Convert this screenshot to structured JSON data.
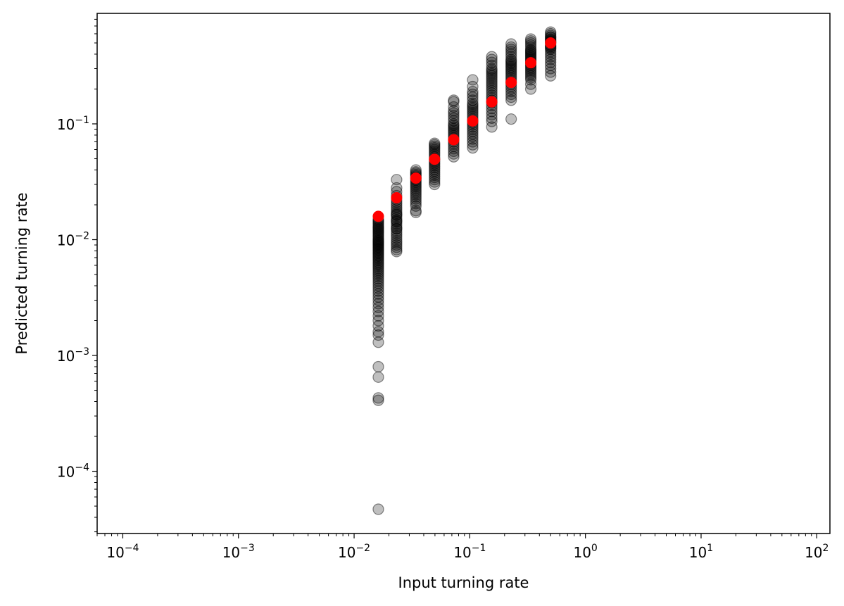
{
  "chart_data": {
    "type": "scatter",
    "title": "",
    "xlabel": "Input turning rate",
    "ylabel": "Predicted turning rate",
    "xscale": "log",
    "yscale": "log",
    "xlim": [
      6e-05,
      130
    ],
    "ylim": [
      2.9e-05,
      0.9
    ],
    "x_ticks": [
      {
        "base": "10",
        "exp": "−4",
        "value": 0.0001
      },
      {
        "base": "10",
        "exp": "−3",
        "value": 0.001
      },
      {
        "base": "10",
        "exp": "−2",
        "value": 0.01
      },
      {
        "base": "10",
        "exp": "−1",
        "value": 0.1
      },
      {
        "base": "10",
        "exp": "0",
        "value": 1
      },
      {
        "base": "10",
        "exp": "1",
        "value": 10
      },
      {
        "base": "10",
        "exp": "2",
        "value": 100
      }
    ],
    "y_ticks": [
      {
        "base": "10",
        "exp": "−4",
        "value": 0.0001
      },
      {
        "base": "10",
        "exp": "−3",
        "value": 0.001
      },
      {
        "base": "10",
        "exp": "−2",
        "value": 0.01
      },
      {
        "base": "10",
        "exp": "−1",
        "value": 0.1
      }
    ],
    "grid": false,
    "legend": "none",
    "colors": {
      "predicted": "#000000",
      "input": "#ff0000"
    },
    "series": [
      {
        "color": "#000000",
        "opacity": 0.25,
        "x": [
          0.0162,
          0.0162,
          0.0162,
          0.0162,
          0.0162,
          0.0162,
          0.0162,
          0.0162,
          0.0162,
          0.0162,
          0.0162,
          0.0162,
          0.0162,
          0.0162,
          0.0162,
          0.0162,
          0.0162,
          0.0162,
          0.0162,
          0.0162,
          0.0162,
          0.0162,
          0.0162,
          0.0162,
          0.0162,
          0.0162,
          0.0162,
          0.0162,
          0.0162,
          0.0162,
          0.0162,
          0.0162,
          0.0162,
          0.0162,
          0.0162,
          0.0162,
          0.0162,
          0.0162,
          0.0162,
          0.0162,
          0.0162,
          0.0162,
          0.0162,
          0.0162,
          0.0162,
          0.0162,
          0.0162,
          0.0162,
          0.0162,
          0.0162,
          0.0162,
          0.0162,
          0.0162,
          0.0162,
          0.0162,
          0.0162,
          0.0162,
          0.0162,
          0.0162,
          0.0162,
          0.0162,
          0.0162,
          0.0162,
          0.0162,
          0.0162,
          0.0233,
          0.0233,
          0.0233,
          0.0233,
          0.0233,
          0.0233,
          0.0233,
          0.0233,
          0.0233,
          0.0233,
          0.0233,
          0.0233,
          0.0233,
          0.0233,
          0.0233,
          0.0233,
          0.0233,
          0.0233,
          0.0233,
          0.0233,
          0.0233,
          0.0233,
          0.0233,
          0.0233,
          0.0233,
          0.0233,
          0.0233,
          0.0233,
          0.0233,
          0.0233,
          0.0233,
          0.0342,
          0.0342,
          0.0342,
          0.0342,
          0.0342,
          0.0342,
          0.0342,
          0.0342,
          0.0342,
          0.0342,
          0.0342,
          0.0342,
          0.0342,
          0.0342,
          0.0342,
          0.0342,
          0.0342,
          0.0342,
          0.0342,
          0.0342,
          0.0342,
          0.0342,
          0.0342,
          0.0496,
          0.0496,
          0.0496,
          0.0496,
          0.0496,
          0.0496,
          0.0496,
          0.0496,
          0.0496,
          0.0496,
          0.0496,
          0.0496,
          0.0496,
          0.0496,
          0.0496,
          0.0496,
          0.0496,
          0.0496,
          0.0496,
          0.0496,
          0.0496,
          0.0496,
          0.0496,
          0.0726,
          0.0726,
          0.0726,
          0.0726,
          0.0726,
          0.0726,
          0.0726,
          0.0726,
          0.0726,
          0.0726,
          0.0726,
          0.0726,
          0.0726,
          0.0726,
          0.0726,
          0.0726,
          0.0726,
          0.0726,
          0.0726,
          0.0726,
          0.0726,
          0.0726,
          0.0726,
          0.0726,
          0.0726,
          0.106,
          0.106,
          0.106,
          0.106,
          0.106,
          0.106,
          0.106,
          0.106,
          0.106,
          0.106,
          0.106,
          0.106,
          0.106,
          0.106,
          0.106,
          0.106,
          0.106,
          0.106,
          0.106,
          0.106,
          0.106,
          0.106,
          0.106,
          0.106,
          0.106,
          0.106,
          0.106,
          0.155,
          0.155,
          0.155,
          0.155,
          0.155,
          0.155,
          0.155,
          0.155,
          0.155,
          0.155,
          0.155,
          0.155,
          0.155,
          0.155,
          0.155,
          0.155,
          0.155,
          0.155,
          0.155,
          0.155,
          0.155,
          0.155,
          0.155,
          0.155,
          0.155,
          0.155,
          0.155,
          0.155,
          0.228,
          0.228,
          0.228,
          0.228,
          0.228,
          0.228,
          0.228,
          0.228,
          0.228,
          0.228,
          0.228,
          0.228,
          0.228,
          0.228,
          0.228,
          0.228,
          0.228,
          0.228,
          0.228,
          0.228,
          0.228,
          0.228,
          0.228,
          0.228,
          0.228,
          0.228,
          0.228,
          0.228,
          0.337,
          0.337,
          0.337,
          0.337,
          0.337,
          0.337,
          0.337,
          0.337,
          0.337,
          0.337,
          0.337,
          0.337,
          0.337,
          0.337,
          0.337,
          0.337,
          0.337,
          0.337,
          0.337,
          0.337,
          0.337,
          0.337,
          0.337,
          0.337,
          0.337,
          0.337,
          0.337,
          0.337,
          0.5,
          0.5,
          0.5,
          0.5,
          0.5,
          0.5,
          0.5,
          0.5,
          0.5,
          0.5,
          0.5,
          0.5,
          0.5,
          0.5,
          0.5,
          0.5,
          0.5,
          0.5,
          0.5,
          0.5,
          0.5,
          0.5,
          0.5,
          0.5
        ],
        "y": [
          4.7e-05,
          0.00041,
          0.00043,
          0.00065,
          0.0008,
          0.0013,
          0.0015,
          0.0016,
          0.0018,
          0.002,
          0.0022,
          0.0024,
          0.0026,
          0.0028,
          0.003,
          0.0032,
          0.0034,
          0.0036,
          0.0038,
          0.004,
          0.0042,
          0.0044,
          0.0046,
          0.0048,
          0.005,
          0.0052,
          0.0054,
          0.0056,
          0.0058,
          0.006,
          0.0062,
          0.0064,
          0.0066,
          0.0068,
          0.007,
          0.0072,
          0.0074,
          0.0076,
          0.0078,
          0.008,
          0.0082,
          0.0084,
          0.0086,
          0.0088,
          0.009,
          0.0092,
          0.0094,
          0.0096,
          0.0098,
          0.01,
          0.0103,
          0.0106,
          0.0109,
          0.0112,
          0.0115,
          0.0118,
          0.0121,
          0.0124,
          0.0127,
          0.013,
          0.0134,
          0.0138,
          0.0142,
          0.0146,
          0.015,
          0.0079,
          0.0082,
          0.0086,
          0.009,
          0.0094,
          0.0098,
          0.0103,
          0.0108,
          0.0113,
          0.0118,
          0.0124,
          0.013,
          0.0136,
          0.0142,
          0.0148,
          0.0155,
          0.0162,
          0.0169,
          0.0176,
          0.0184,
          0.0192,
          0.0201,
          0.021,
          0.022,
          0.024,
          0.026,
          0.028,
          0.033,
          0.0165,
          0.0125,
          0.0145,
          0.0172,
          0.0178,
          0.0195,
          0.0205,
          0.0215,
          0.0225,
          0.0235,
          0.0245,
          0.0255,
          0.0265,
          0.0275,
          0.0285,
          0.0295,
          0.0305,
          0.0315,
          0.0325,
          0.0335,
          0.0345,
          0.0355,
          0.0365,
          0.0375,
          0.0385,
          0.04,
          0.03,
          0.0315,
          0.033,
          0.0345,
          0.036,
          0.0375,
          0.039,
          0.0405,
          0.042,
          0.0435,
          0.045,
          0.0465,
          0.048,
          0.05,
          0.052,
          0.054,
          0.056,
          0.058,
          0.06,
          0.062,
          0.064,
          0.066,
          0.068,
          0.052,
          0.055,
          0.058,
          0.061,
          0.064,
          0.067,
          0.07,
          0.073,
          0.076,
          0.079,
          0.082,
          0.085,
          0.088,
          0.091,
          0.094,
          0.097,
          0.1,
          0.106,
          0.112,
          0.118,
          0.124,
          0.13,
          0.14,
          0.16,
          0.155,
          0.062,
          0.066,
          0.07,
          0.074,
          0.078,
          0.082,
          0.086,
          0.09,
          0.094,
          0.098,
          0.102,
          0.106,
          0.11,
          0.115,
          0.12,
          0.125,
          0.13,
          0.135,
          0.14,
          0.145,
          0.15,
          0.16,
          0.17,
          0.18,
          0.19,
          0.21,
          0.24,
          0.094,
          0.105,
          0.112,
          0.12,
          0.128,
          0.136,
          0.144,
          0.152,
          0.16,
          0.168,
          0.176,
          0.185,
          0.194,
          0.203,
          0.212,
          0.221,
          0.23,
          0.24,
          0.25,
          0.26,
          0.27,
          0.28,
          0.29,
          0.3,
          0.32,
          0.34,
          0.36,
          0.38,
          0.11,
          0.16,
          0.17,
          0.18,
          0.19,
          0.2,
          0.21,
          0.22,
          0.23,
          0.24,
          0.25,
          0.26,
          0.27,
          0.28,
          0.29,
          0.3,
          0.31,
          0.32,
          0.33,
          0.34,
          0.35,
          0.36,
          0.38,
          0.4,
          0.42,
          0.44,
          0.46,
          0.49,
          0.2,
          0.22,
          0.24,
          0.25,
          0.26,
          0.27,
          0.28,
          0.29,
          0.3,
          0.31,
          0.32,
          0.33,
          0.34,
          0.35,
          0.36,
          0.37,
          0.38,
          0.39,
          0.4,
          0.41,
          0.42,
          0.43,
          0.44,
          0.46,
          0.48,
          0.5,
          0.52,
          0.54,
          0.26,
          0.28,
          0.3,
          0.32,
          0.34,
          0.36,
          0.38,
          0.4,
          0.42,
          0.44,
          0.46,
          0.48,
          0.5,
          0.52,
          0.54,
          0.56,
          0.58,
          0.6,
          0.62,
          0.56,
          0.53,
          0.51,
          0.47,
          0.45
        ]
      },
      {
        "color": "#ff0000",
        "opacity": 1,
        "x": [
          0.0162,
          0.0233,
          0.0342,
          0.0496,
          0.0726,
          0.106,
          0.155,
          0.228,
          0.337,
          0.5
        ],
        "y": [
          0.0159,
          0.023,
          0.034,
          0.0495,
          0.073,
          0.106,
          0.155,
          0.228,
          0.337,
          0.5
        ]
      }
    ]
  }
}
